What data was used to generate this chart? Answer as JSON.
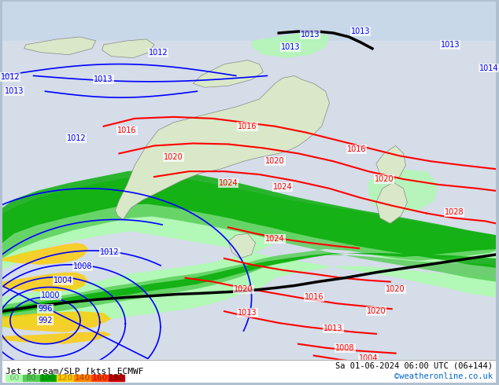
{
  "title_left": "Jet stream/SLP [kts] ECMWF",
  "title_right": "Sa 01-06-2024 06:00 UTC (06+144)",
  "credit": "©weatheronline.co.uk",
  "legend_values": [
    "60",
    "80",
    "100",
    "120",
    "140",
    "160",
    "180"
  ],
  "legend_colors": [
    "#aaffaa",
    "#55cc55",
    "#00aa00",
    "#ffcc00",
    "#ff8800",
    "#ff4400",
    "#cc0000"
  ],
  "legend_text_colors": [
    "#88cc88",
    "#44aa44",
    "#008800",
    "#cc9900",
    "#cc5500",
    "#cc2200",
    "#880000"
  ],
  "bg_color": "#c8d8e8",
  "land_color": "#d8e8c8",
  "figsize": [
    6.34,
    4.9
  ],
  "dpi": 100
}
